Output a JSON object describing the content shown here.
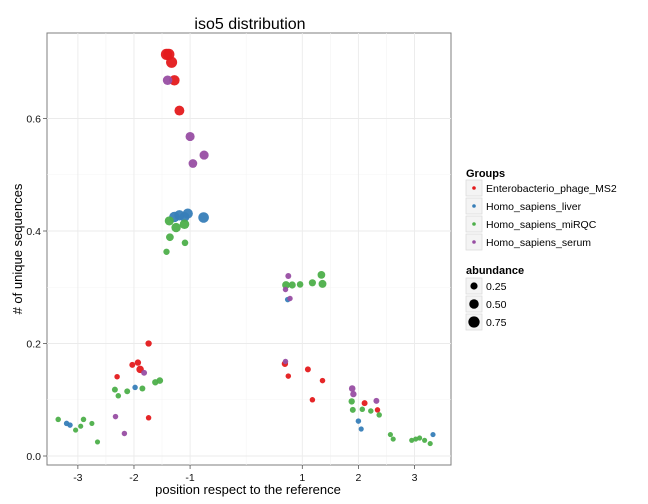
{
  "chart_data": {
    "type": "scatter",
    "title": "iso5 distribution",
    "xlabel": "position respect to the reference",
    "ylabel": "# of unique sequences",
    "xlim": [
      -3.55,
      3.65
    ],
    "ylim": [
      -0.016,
      0.752
    ],
    "xticks": [
      -3,
      -2,
      -1,
      1,
      2,
      3
    ],
    "xtick_labels": [
      "-3",
      "-2",
      "-1",
      "1",
      "2",
      "3"
    ],
    "yticks": [
      0.0,
      0.2,
      0.4,
      0.6
    ],
    "ytick_labels": [
      "0.0",
      "0.2",
      "0.4",
      "0.6"
    ],
    "grid": true,
    "legend_position": "right",
    "color_legend_title": "Groups",
    "size_legend_title": "abundance",
    "size_legend": [
      {
        "label": "0.25",
        "value": 0.25
      },
      {
        "label": "0.50",
        "value": 0.5
      },
      {
        "label": "0.75",
        "value": 0.75
      }
    ],
    "series": [
      {
        "name": "Enterobacterio_phage_MS2",
        "color": "#e41a1c",
        "points": [
          {
            "x": -1.42,
            "y": 0.714,
            "size": 0.75
          },
          {
            "x": -1.38,
            "y": 0.714,
            "size": 0.75
          },
          {
            "x": -1.33,
            "y": 0.7,
            "size": 0.72
          },
          {
            "x": -1.28,
            "y": 0.668,
            "size": 0.62
          },
          {
            "x": -1.19,
            "y": 0.614,
            "size": 0.55
          },
          {
            "x": -1.74,
            "y": 0.2,
            "size": 0.18
          },
          {
            "x": -1.93,
            "y": 0.166,
            "size": 0.18
          },
          {
            "x": -1.89,
            "y": 0.154,
            "size": 0.28
          },
          {
            "x": -2.03,
            "y": 0.162,
            "size": 0.15
          },
          {
            "x": -2.3,
            "y": 0.141,
            "size": 0.12
          },
          {
            "x": -1.74,
            "y": 0.068,
            "size": 0.12
          },
          {
            "x": 0.69,
            "y": 0.164,
            "size": 0.18
          },
          {
            "x": 0.75,
            "y": 0.142,
            "size": 0.12
          },
          {
            "x": 1.1,
            "y": 0.154,
            "size": 0.15
          },
          {
            "x": 1.18,
            "y": 0.1,
            "size": 0.12
          },
          {
            "x": 1.36,
            "y": 0.134,
            "size": 0.12
          },
          {
            "x": 2.11,
            "y": 0.094,
            "size": 0.15
          },
          {
            "x": 2.34,
            "y": 0.082,
            "size": 0.12
          }
        ]
      },
      {
        "name": "Homo_sapiens_liver",
        "color": "#377eb8",
        "points": [
          {
            "x": -1.28,
            "y": 0.425,
            "size": 0.62
          },
          {
            "x": -1.19,
            "y": 0.428,
            "size": 0.6
          },
          {
            "x": -1.1,
            "y": 0.425,
            "size": 0.55
          },
          {
            "x": -1.04,
            "y": 0.431,
            "size": 0.58
          },
          {
            "x": -0.76,
            "y": 0.424,
            "size": 0.65
          },
          {
            "x": -3.2,
            "y": 0.058,
            "size": 0.12
          },
          {
            "x": -3.14,
            "y": 0.055,
            "size": 0.12
          },
          {
            "x": -1.98,
            "y": 0.122,
            "size": 0.12
          },
          {
            "x": 0.74,
            "y": 0.278,
            "size": 0.12
          },
          {
            "x": 2.0,
            "y": 0.062,
            "size": 0.12
          },
          {
            "x": 2.05,
            "y": 0.048,
            "size": 0.1
          },
          {
            "x": 3.33,
            "y": 0.038,
            "size": 0.1
          }
        ]
      },
      {
        "name": "Homo_sapiens_miRQC",
        "color": "#4daf4a",
        "points": [
          {
            "x": -1.37,
            "y": 0.418,
            "size": 0.45
          },
          {
            "x": -1.25,
            "y": 0.406,
            "size": 0.48
          },
          {
            "x": -1.1,
            "y": 0.412,
            "size": 0.5
          },
          {
            "x": -1.36,
            "y": 0.389,
            "size": 0.3
          },
          {
            "x": -1.09,
            "y": 0.379,
            "size": 0.2
          },
          {
            "x": -1.42,
            "y": 0.363,
            "size": 0.18
          },
          {
            "x": 1.34,
            "y": 0.322,
            "size": 0.3
          },
          {
            "x": 0.71,
            "y": 0.304,
            "size": 0.3
          },
          {
            "x": 0.82,
            "y": 0.304,
            "size": 0.25
          },
          {
            "x": 0.96,
            "y": 0.305,
            "size": 0.2
          },
          {
            "x": 1.18,
            "y": 0.308,
            "size": 0.25
          },
          {
            "x": 1.36,
            "y": 0.306,
            "size": 0.32
          },
          {
            "x": -1.54,
            "y": 0.134,
            "size": 0.2
          },
          {
            "x": -1.62,
            "y": 0.131,
            "size": 0.18
          },
          {
            "x": -2.34,
            "y": 0.118,
            "size": 0.15
          },
          {
            "x": -2.28,
            "y": 0.107,
            "size": 0.12
          },
          {
            "x": -2.12,
            "y": 0.115,
            "size": 0.15
          },
          {
            "x": -1.85,
            "y": 0.12,
            "size": 0.15
          },
          {
            "x": -3.35,
            "y": 0.065,
            "size": 0.12
          },
          {
            "x": -2.9,
            "y": 0.065,
            "size": 0.12
          },
          {
            "x": -2.75,
            "y": 0.058,
            "size": 0.1
          },
          {
            "x": -2.95,
            "y": 0.053,
            "size": 0.1
          },
          {
            "x": -3.04,
            "y": 0.046,
            "size": 0.1
          },
          {
            "x": -2.65,
            "y": 0.025,
            "size": 0.1
          },
          {
            "x": 1.88,
            "y": 0.097,
            "size": 0.18
          },
          {
            "x": 1.9,
            "y": 0.082,
            "size": 0.15
          },
          {
            "x": 2.07,
            "y": 0.083,
            "size": 0.12
          },
          {
            "x": 2.22,
            "y": 0.08,
            "size": 0.12
          },
          {
            "x": 2.37,
            "y": 0.073,
            "size": 0.12
          },
          {
            "x": 2.57,
            "y": 0.038,
            "size": 0.1
          },
          {
            "x": 2.62,
            "y": 0.03,
            "size": 0.1
          },
          {
            "x": 2.95,
            "y": 0.028,
            "size": 0.1
          },
          {
            "x": 3.02,
            "y": 0.03,
            "size": 0.1
          },
          {
            "x": 3.09,
            "y": 0.032,
            "size": 0.1
          },
          {
            "x": 3.18,
            "y": 0.028,
            "size": 0.1
          },
          {
            "x": 3.28,
            "y": 0.022,
            "size": 0.1
          }
        ]
      },
      {
        "name": "Homo_sapiens_serum",
        "color": "#984ea3",
        "points": [
          {
            "x": -1.4,
            "y": 0.668,
            "size": 0.5
          },
          {
            "x": -1.0,
            "y": 0.568,
            "size": 0.45
          },
          {
            "x": -0.75,
            "y": 0.535,
            "size": 0.45
          },
          {
            "x": -0.95,
            "y": 0.52,
            "size": 0.4
          },
          {
            "x": 0.75,
            "y": 0.32,
            "size": 0.15
          },
          {
            "x": 0.7,
            "y": 0.296,
            "size": 0.12
          },
          {
            "x": 0.78,
            "y": 0.28,
            "size": 0.12
          },
          {
            "x": -1.82,
            "y": 0.148,
            "size": 0.15
          },
          {
            "x": -2.33,
            "y": 0.07,
            "size": 0.12
          },
          {
            "x": -2.17,
            "y": 0.04,
            "size": 0.12
          },
          {
            "x": 1.89,
            "y": 0.12,
            "size": 0.2
          },
          {
            "x": 1.91,
            "y": 0.11,
            "size": 0.18
          },
          {
            "x": 2.32,
            "y": 0.098,
            "size": 0.15
          },
          {
            "x": 0.7,
            "y": 0.168,
            "size": 0.12
          }
        ]
      }
    ]
  }
}
